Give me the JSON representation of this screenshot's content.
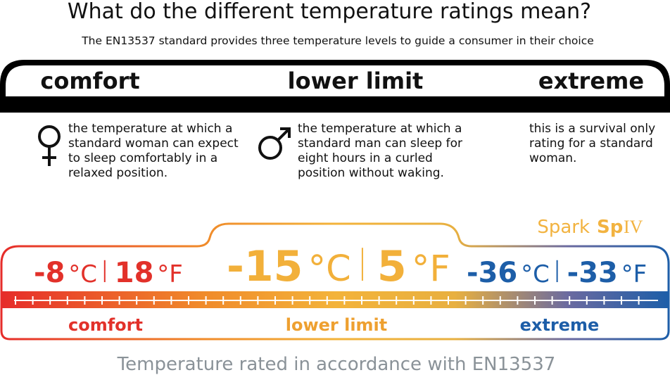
{
  "header": {
    "title": "What do the different temperature ratings mean?",
    "subtitle": "The EN13537 standard provides three temperature levels to guide a consumer in their choice"
  },
  "levels": [
    {
      "name": "comfort",
      "description_lines": [
        "the temperature at which a",
        "standard woman can expect",
        "to sleep comfortably in a",
        "relaxed position."
      ]
    },
    {
      "name": "lower limit",
      "description_lines": [
        "the temperature at which a",
        "standard man can sleep for",
        "eight hours in a curled",
        "position without waking."
      ]
    },
    {
      "name": "extreme",
      "description_lines": [
        "this is a survival only",
        "rating for a standard",
        "woman."
      ]
    }
  ],
  "product": {
    "brand": "Spark",
    "model_prefix": "Sp",
    "model_suffix": "IV"
  },
  "ratings": [
    {
      "celsius": -8,
      "fahrenheit": 18
    },
    {
      "celsius": -15,
      "fahrenheit": 5
    },
    {
      "celsius": -36,
      "fahrenheit": -33
    }
  ],
  "units": {
    "celsius": "°C",
    "fahrenheit": "°F"
  },
  "footer": "Temperature rated in accordance with EN13537"
}
